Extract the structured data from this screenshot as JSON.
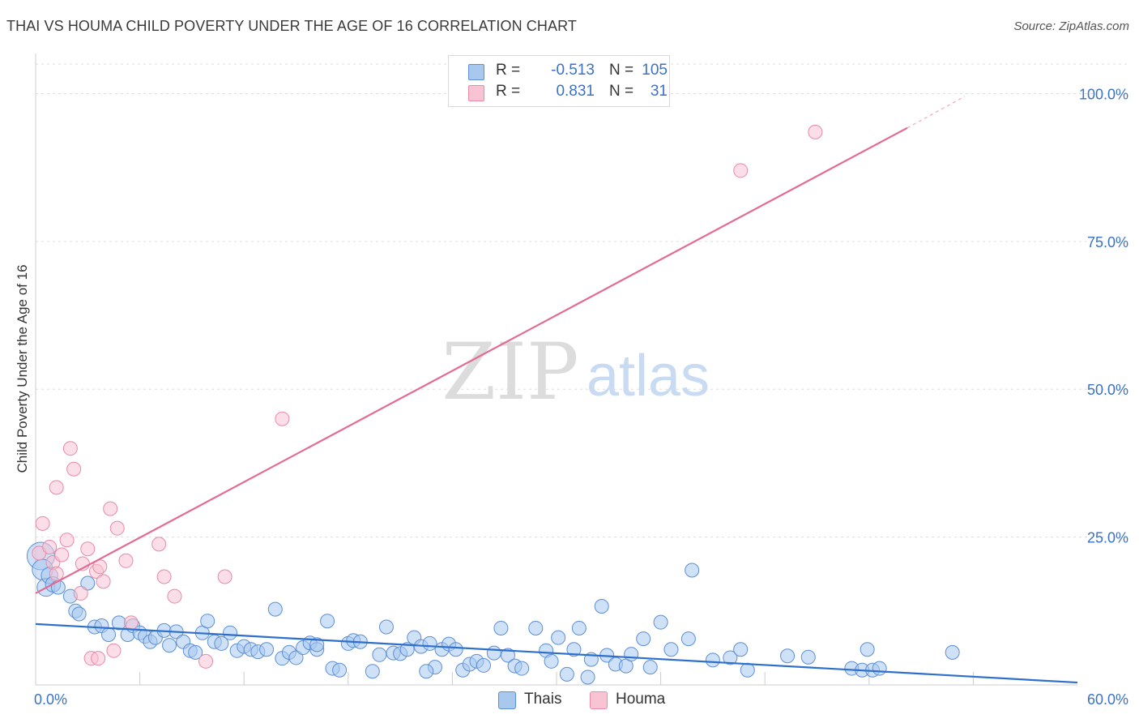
{
  "header": {
    "title": "THAI VS HOUMA CHILD POVERTY UNDER THE AGE OF 16 CORRELATION CHART",
    "source": "Source: ZipAtlas.com"
  },
  "legend": {
    "rows": [
      {
        "r_label": "R =",
        "r_value": "-0.513",
        "n_label": "N =",
        "n_value": "105",
        "color": "#a8c8ee",
        "border": "#5d8fd6"
      },
      {
        "r_label": "R =",
        "r_value": "0.831",
        "n_label": "N =",
        "n_value": "31",
        "color": "#f8c3d3",
        "border": "#e88aa8"
      }
    ],
    "bottom": [
      {
        "label": "Thais",
        "color": "#a8c8ee",
        "border": "#5d8fd6"
      },
      {
        "label": "Houma",
        "color": "#f8c3d3",
        "border": "#e88aa8"
      }
    ]
  },
  "watermark": {
    "zip": "ZIP",
    "atlas": "atlas"
  },
  "chart_data": {
    "type": "scatter",
    "title": "THAI VS HOUMA CHILD POVERTY UNDER THE AGE OF 16 CORRELATION CHART",
    "xlabel": "",
    "ylabel": "Child Poverty Under the Age of 16",
    "xlim": [
      0,
      60
    ],
    "ylim": [
      0,
      105
    ],
    "x_tick_labels": [
      {
        "value": 0,
        "label": "0.0%"
      },
      {
        "value": 60,
        "label": "60.0%"
      }
    ],
    "y_tick_labels": [
      {
        "value": 25,
        "label": "25.0%"
      },
      {
        "value": 50,
        "label": "50.0%"
      },
      {
        "value": 75,
        "label": "75.0%"
      },
      {
        "value": 100,
        "label": "100.0%"
      }
    ],
    "y_gridlines": [
      25,
      50,
      75,
      100
    ],
    "x_minor_ticks": [
      6,
      12,
      18,
      24,
      30,
      36,
      42,
      48,
      54
    ],
    "series": [
      {
        "name": "Thais",
        "color": "#a8c8ee",
        "stroke": "#5d8fd6",
        "trend": {
          "x": [
            0,
            60
          ],
          "y": [
            10.3,
            0.4
          ],
          "color": "#2f6fcc"
        },
        "points": [
          [
            0.3,
            21.8,
            2
          ],
          [
            0.4,
            19.5,
            1.5
          ],
          [
            0.6,
            16.5,
            1.3
          ],
          [
            0.8,
            18.5,
            1.2
          ],
          [
            1.0,
            17.0,
            1.1
          ],
          [
            1.3,
            16.5,
            1
          ],
          [
            2.0,
            15.0,
            1
          ],
          [
            2.3,
            12.5,
            1
          ],
          [
            2.5,
            12.0,
            1
          ],
          [
            3.0,
            17.2,
            1
          ],
          [
            3.4,
            9.8,
            1
          ],
          [
            3.8,
            10.0,
            1
          ],
          [
            4.2,
            8.5,
            1
          ],
          [
            4.8,
            10.5,
            1
          ],
          [
            5.3,
            8.5,
            1
          ],
          [
            5.6,
            10.0,
            1
          ],
          [
            6.0,
            8.8,
            1
          ],
          [
            6.3,
            8.2,
            1
          ],
          [
            6.6,
            7.3,
            1
          ],
          [
            6.9,
            8.0,
            1
          ],
          [
            7.4,
            9.2,
            1
          ],
          [
            7.7,
            6.7,
            1
          ],
          [
            8.1,
            9.0,
            1
          ],
          [
            8.5,
            7.3,
            1
          ],
          [
            8.9,
            5.8,
            1
          ],
          [
            9.2,
            5.5,
            1
          ],
          [
            9.6,
            8.8,
            1
          ],
          [
            9.9,
            10.8,
            1
          ],
          [
            10.3,
            7.3,
            1
          ],
          [
            10.7,
            7.0,
            1
          ],
          [
            11.2,
            8.8,
            1
          ],
          [
            11.6,
            5.8,
            1
          ],
          [
            12.0,
            6.5,
            1
          ],
          [
            12.4,
            6.0,
            1
          ],
          [
            12.8,
            5.6,
            1
          ],
          [
            13.3,
            6.0,
            1
          ],
          [
            13.8,
            12.8,
            1
          ],
          [
            14.2,
            4.5,
            1
          ],
          [
            14.6,
            5.5,
            1
          ],
          [
            15.0,
            4.6,
            1
          ],
          [
            15.4,
            6.3,
            1
          ],
          [
            15.8,
            7.1,
            1
          ],
          [
            16.2,
            6.0,
            1
          ],
          [
            16.8,
            10.8,
            1
          ],
          [
            17.1,
            2.8,
            1
          ],
          [
            17.5,
            2.5,
            1
          ],
          [
            18.0,
            7.0,
            1
          ],
          [
            18.3,
            7.5,
            1
          ],
          [
            18.7,
            7.3,
            1
          ],
          [
            19.4,
            2.3,
            1
          ],
          [
            19.8,
            5.1,
            1
          ],
          [
            20.2,
            9.8,
            1
          ],
          [
            20.6,
            5.4,
            1
          ],
          [
            21.0,
            5.3,
            1
          ],
          [
            21.4,
            6.0,
            1
          ],
          [
            21.8,
            8.0,
            1
          ],
          [
            22.2,
            6.5,
            1
          ],
          [
            22.7,
            7.0,
            1
          ],
          [
            23.0,
            3.0,
            1
          ],
          [
            23.4,
            6.0,
            1
          ],
          [
            23.8,
            6.9,
            1
          ],
          [
            24.2,
            6.0,
            1
          ],
          [
            24.6,
            2.5,
            1
          ],
          [
            25.0,
            3.5,
            1
          ],
          [
            25.4,
            4.0,
            1
          ],
          [
            25.8,
            3.3,
            1
          ],
          [
            26.4,
            5.4,
            1
          ],
          [
            26.8,
            9.6,
            1
          ],
          [
            27.2,
            5.0,
            1
          ],
          [
            27.6,
            3.2,
            1
          ],
          [
            28.0,
            2.8,
            1
          ],
          [
            28.8,
            9.6,
            1
          ],
          [
            29.4,
            5.8,
            1
          ],
          [
            29.7,
            4.0,
            1
          ],
          [
            30.1,
            8.0,
            1
          ],
          [
            30.6,
            1.8,
            1
          ],
          [
            31.0,
            6.0,
            1
          ],
          [
            31.3,
            9.6,
            1
          ],
          [
            31.8,
            1.3,
            1
          ],
          [
            32.0,
            4.3,
            1
          ],
          [
            32.6,
            13.3,
            1
          ],
          [
            32.9,
            5.0,
            1
          ],
          [
            33.4,
            3.5,
            1
          ],
          [
            34.0,
            3.2,
            1
          ],
          [
            34.3,
            5.2,
            1
          ],
          [
            35.0,
            7.8,
            1
          ],
          [
            35.4,
            3.0,
            1
          ],
          [
            36.0,
            10.6,
            1
          ],
          [
            36.6,
            6.0,
            1
          ],
          [
            37.6,
            7.8,
            1
          ],
          [
            37.8,
            19.4,
            1
          ],
          [
            39.0,
            4.2,
            1
          ],
          [
            40.0,
            4.6,
            1
          ],
          [
            40.6,
            6.0,
            1
          ],
          [
            41.0,
            2.5,
            1
          ],
          [
            43.3,
            4.9,
            1
          ],
          [
            44.5,
            4.7,
            1
          ],
          [
            47.0,
            2.8,
            1
          ],
          [
            47.6,
            2.5,
            1
          ],
          [
            47.9,
            6.0,
            1
          ],
          [
            48.2,
            2.5,
            1
          ],
          [
            48.6,
            2.8,
            1
          ],
          [
            52.8,
            5.5,
            1
          ],
          [
            22.5,
            2.3,
            1
          ],
          [
            16.2,
            6.8,
            1
          ]
        ]
      },
      {
        "name": "Houma",
        "color": "#f8c3d3",
        "stroke": "#e88aa8",
        "trend": {
          "x": [
            0,
            50.2
          ],
          "y": [
            15.5,
            94.2
          ],
          "color": "#e36b93",
          "dashed_extension": {
            "x": [
              50.2,
              53.5
            ],
            "y": [
              94.2,
              99.5
            ]
          }
        },
        "points": [
          [
            0.2,
            22.3,
            1
          ],
          [
            0.4,
            27.3,
            1
          ],
          [
            0.8,
            23.3,
            1
          ],
          [
            1.0,
            20.7,
            1
          ],
          [
            1.2,
            18.8,
            1
          ],
          [
            1.2,
            33.4,
            1
          ],
          [
            1.5,
            22.0,
            1
          ],
          [
            1.8,
            24.5,
            1
          ],
          [
            2.0,
            40.0,
            1
          ],
          [
            2.2,
            36.5,
            1
          ],
          [
            2.6,
            15.5,
            1
          ],
          [
            2.7,
            20.5,
            1
          ],
          [
            3.0,
            23.0,
            1
          ],
          [
            3.2,
            4.5,
            1
          ],
          [
            3.5,
            19.2,
            1
          ],
          [
            3.7,
            20.0,
            1
          ],
          [
            3.9,
            17.5,
            1
          ],
          [
            4.3,
            29.8,
            1
          ],
          [
            4.5,
            5.8,
            1
          ],
          [
            4.7,
            26.5,
            1
          ],
          [
            5.2,
            21.0,
            1
          ],
          [
            5.5,
            10.5,
            1
          ],
          [
            7.1,
            23.8,
            1
          ],
          [
            7.4,
            18.3,
            1
          ],
          [
            8.0,
            15.0,
            1
          ],
          [
            9.8,
            4.0,
            1
          ],
          [
            10.9,
            18.3,
            1
          ],
          [
            14.2,
            45.0,
            1
          ],
          [
            40.6,
            87.0,
            1
          ],
          [
            44.9,
            93.5,
            1
          ],
          [
            3.6,
            4.5,
            1
          ]
        ]
      }
    ]
  }
}
